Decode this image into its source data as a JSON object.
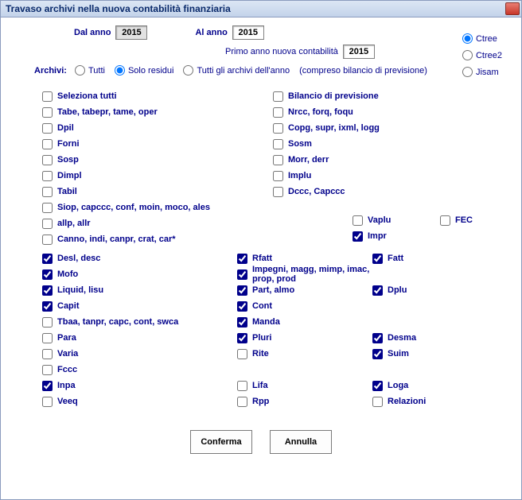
{
  "window": {
    "title": "Travaso archivi nella nuova contabilità finanziaria"
  },
  "years": {
    "dal_label": "Dal anno",
    "dal_value": "2015",
    "al_label": "Al anno",
    "al_value": "2015",
    "primo_label": "Primo anno nuova contabilità",
    "primo_value": "2015"
  },
  "db_options": {
    "ctree": "Ctree",
    "ctree2": "Ctree2",
    "jisam": "Jisam"
  },
  "archivi": {
    "label": "Archivi:",
    "tutti": "Tutti",
    "solo": "Solo residui",
    "tutti_anno": "Tutti gli archivi dell'anno",
    "note": "(compreso bilancio di previsione)"
  },
  "left_upper": [
    {
      "label": "Seleziona tutti",
      "checked": false
    },
    {
      "label": "Tabe, tabepr, tame, oper",
      "checked": false
    },
    {
      "label": "Dpil",
      "checked": false
    },
    {
      "label": "Forni",
      "checked": false
    },
    {
      "label": "Sosp",
      "checked": false
    },
    {
      "label": "Dimpl",
      "checked": false
    },
    {
      "label": "Tabil",
      "checked": false
    },
    {
      "label": "Siop, capccc, conf, moin, moco, ales",
      "checked": false
    },
    {
      "label": "allp, allr",
      "checked": false
    },
    {
      "label": "Canno, indi, canpr, crat, car*",
      "checked": false
    }
  ],
  "right_upper": [
    {
      "label": "Bilancio di previsione",
      "checked": false
    },
    {
      "label": "Nrcc, forq, foqu",
      "checked": false
    },
    {
      "label": "Copg, supr, ixml, logg",
      "checked": false
    },
    {
      "label": "Sosm",
      "checked": false
    },
    {
      "label": "Morr, derr",
      "checked": false
    },
    {
      "label": "Implu",
      "checked": false
    },
    {
      "label": "Dccc, Capccc",
      "checked": false
    }
  ],
  "mid_right": [
    {
      "label": "Vaplu",
      "checked": false
    },
    {
      "label": "Impr",
      "checked": true
    }
  ],
  "fec": {
    "label": "FEC",
    "checked": false
  },
  "col1": [
    {
      "label": "Desl, desc",
      "checked": true
    },
    {
      "label": "Mofo",
      "checked": true
    },
    {
      "label": "Liquid, lisu",
      "checked": true
    },
    {
      "label": "Capit",
      "checked": true
    },
    {
      "label": "Tbaa, tanpr, capc, cont, swca",
      "checked": false
    },
    {
      "label": "Para",
      "checked": false
    },
    {
      "label": "Varia",
      "checked": false
    },
    {
      "label": "Fccc",
      "checked": false
    },
    {
      "label": "Inpa",
      "checked": true
    },
    {
      "label": "Veeq",
      "checked": false
    }
  ],
  "col2": [
    {
      "label": "Rfatt",
      "checked": true
    },
    {
      "label": "Impegni, magg, mimp, imac, prop, prod",
      "checked": true
    },
    {
      "label": "Part, almo",
      "checked": true
    },
    {
      "label": "Cont",
      "checked": true
    },
    {
      "label": "Manda",
      "checked": true
    },
    {
      "label": "Pluri",
      "checked": true
    },
    {
      "label": "Rite",
      "checked": false
    },
    {
      "label": "",
      "checked": null
    },
    {
      "label": "Lifa",
      "checked": false
    },
    {
      "label": "Rpp",
      "checked": false
    }
  ],
  "col3": [
    {
      "label": "Fatt",
      "checked": true
    },
    {
      "label": "",
      "checked": null
    },
    {
      "label": "Dplu",
      "checked": true
    },
    {
      "label": "",
      "checked": null
    },
    {
      "label": "",
      "checked": null
    },
    {
      "label": "Desma",
      "checked": true
    },
    {
      "label": "Suim",
      "checked": true
    },
    {
      "label": "",
      "checked": null
    },
    {
      "label": "Loga",
      "checked": true
    },
    {
      "label": "Relazioni",
      "checked": false
    }
  ],
  "buttons": {
    "ok": "Conferma",
    "cancel": "Annulla"
  }
}
